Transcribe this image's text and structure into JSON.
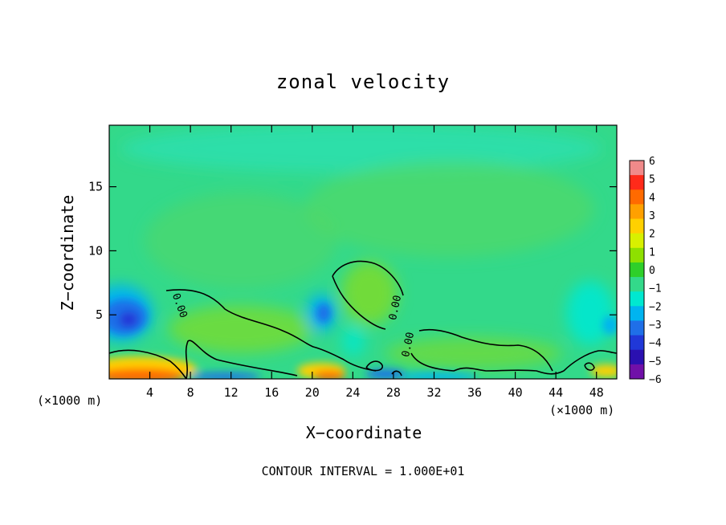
{
  "chart_data": {
    "type": "heatmap",
    "title": "zonal velocity",
    "xlabel": "X−coordinate",
    "ylabel": "Z−coordinate",
    "x_unit": "(×1000 m)",
    "x_ticks": [
      4,
      8,
      12,
      16,
      20,
      24,
      28,
      32,
      36,
      40,
      44,
      48
    ],
    "y_ticks": [
      5,
      10,
      15
    ],
    "xlim": [
      0,
      50
    ],
    "ylim": [
      0,
      19.8
    ],
    "contour_label": "0.00",
    "contour_interval_text": "CONTOUR INTERVAL = 1.000E+01",
    "colorbar": {
      "ticks": [
        "6",
        "5",
        "4",
        "3",
        "2",
        "1",
        "0",
        "−1",
        "−2",
        "−3",
        "−4",
        "−5",
        "−6"
      ],
      "colors": [
        "#f08a8a",
        "#ff2a1a",
        "#ff6a00",
        "#ffa000",
        "#ffd000",
        "#d8f000",
        "#8ee000",
        "#2ecf2a",
        "#33d98a",
        "#00e8d0",
        "#00b4f0",
        "#1f6fe8",
        "#2038d8",
        "#2a10b0",
        "#7010a8"
      ]
    }
  }
}
